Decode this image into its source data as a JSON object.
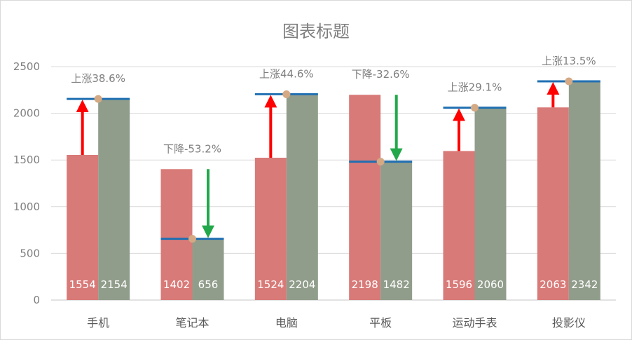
{
  "chart_data": {
    "type": "bar",
    "title": "图表标题",
    "categories": [
      "手机",
      "笔记本",
      "电脑",
      "平板",
      "运动手表",
      "投影仪"
    ],
    "series": [
      {
        "values": [
          1554,
          1402,
          1524,
          2198,
          1596,
          2063
        ]
      },
      {
        "values": [
          2154,
          656,
          2204,
          1482,
          2060,
          2342
        ]
      }
    ],
    "annotations": [
      "上涨38.6%",
      "下降-53.2%",
      "上涨44.6%",
      "下降-32.6%",
      "上涨29.1%",
      "上涨13.5%"
    ],
    "y_ticks": [
      "0",
      "500",
      "1000",
      "1500",
      "2000",
      "2500"
    ],
    "ylim": [
      0,
      2500
    ],
    "grid": true,
    "legend": "none",
    "colors": {
      "series1": "#d87a78",
      "series2": "#919d8b",
      "up_arrow": "#ff0000",
      "down_arrow": "#22a84a",
      "target_line": "#1f6fb2",
      "marker": "#d4a983",
      "grid": "#d9d9d9"
    }
  }
}
